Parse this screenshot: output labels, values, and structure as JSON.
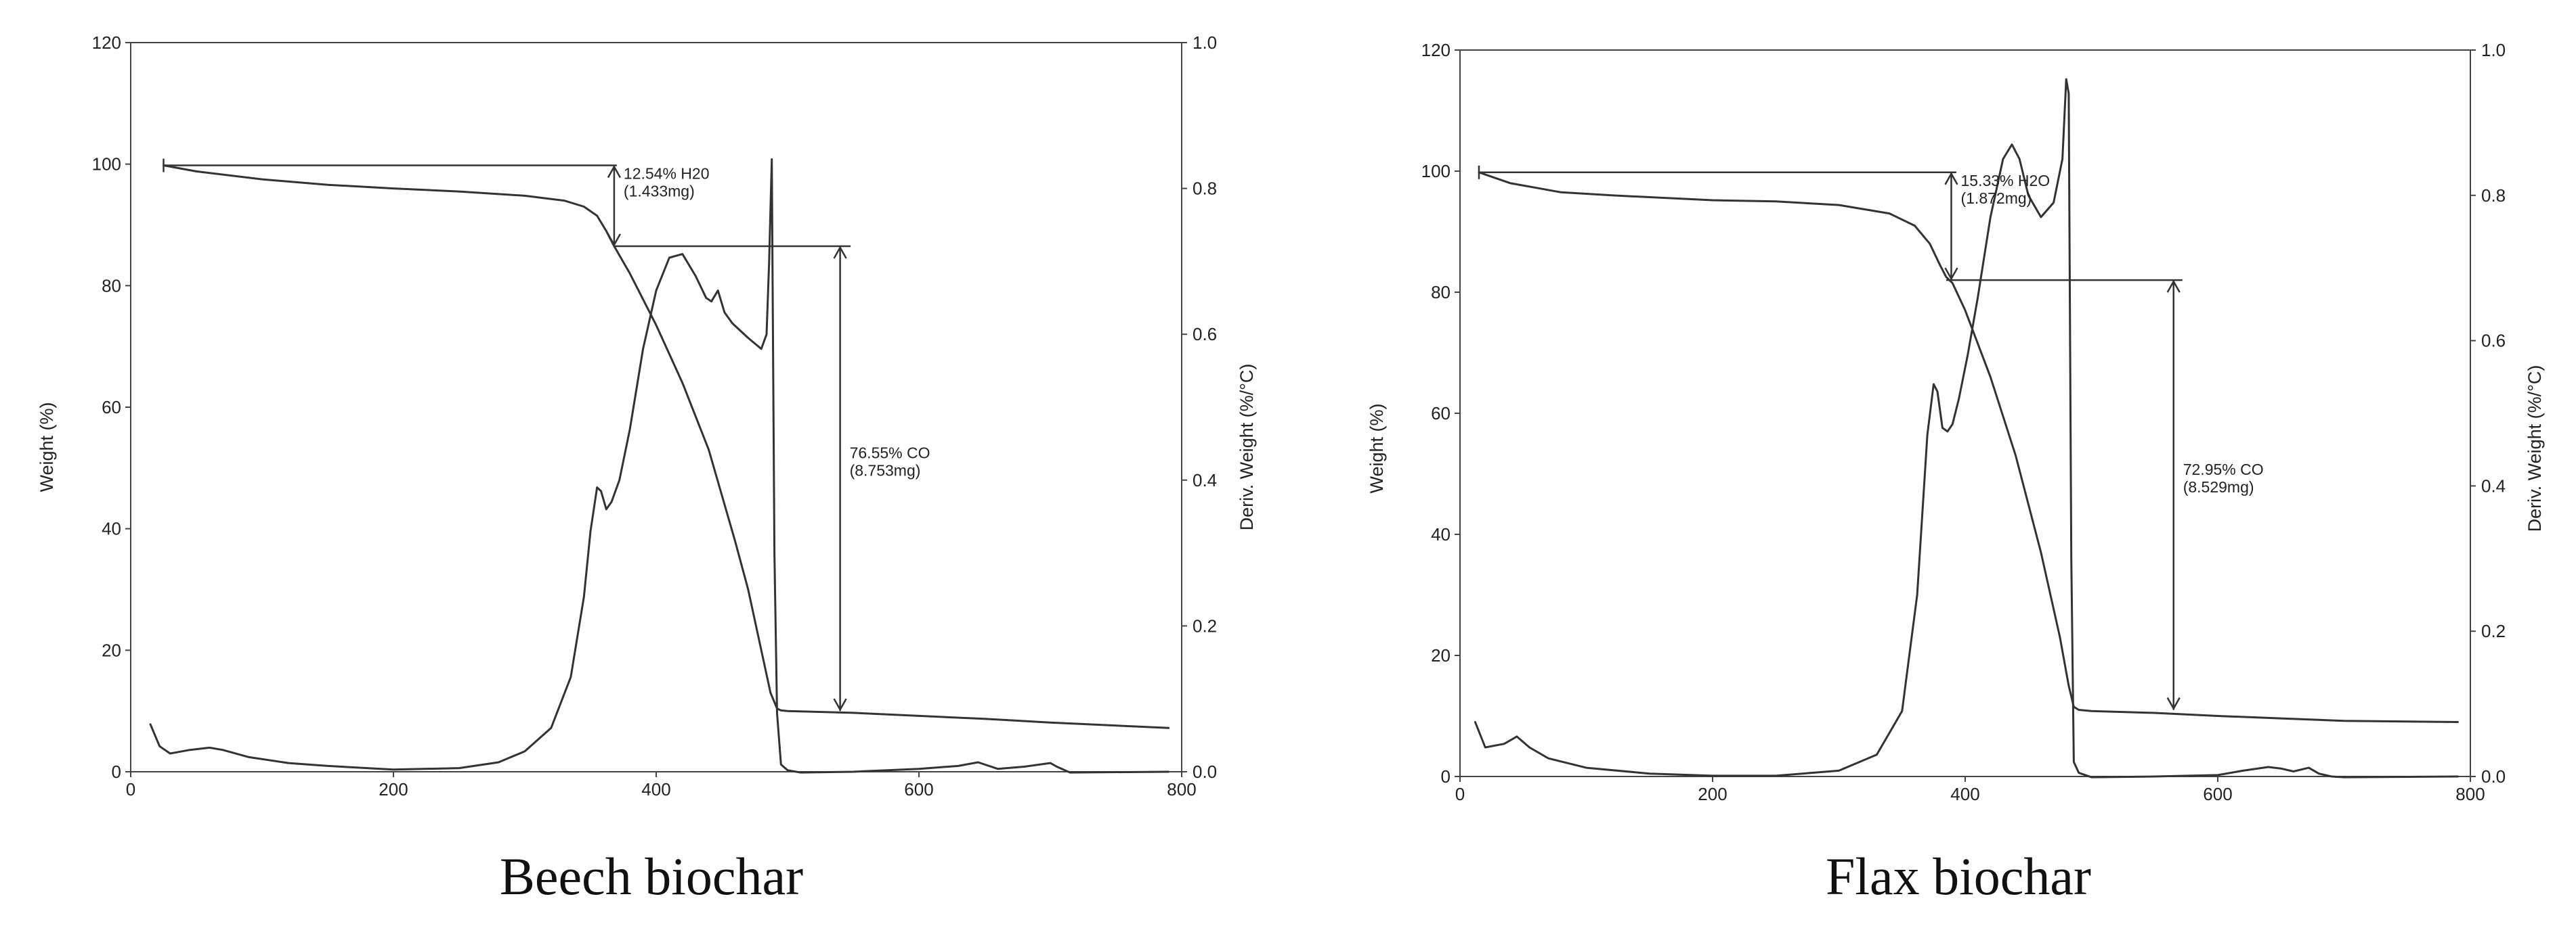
{
  "chart_data": [
    {
      "type": "line",
      "caption": "Beech biochar",
      "xlabel": "",
      "ylabel": "Weight (%)",
      "y2label": "Deriv. Weight (%/°C)",
      "xlim": [
        0,
        800
      ],
      "ylim": [
        0,
        120
      ],
      "y2lim": [
        0,
        1.0
      ],
      "xticks": [
        "0",
        "200",
        "400",
        "600",
        "800"
      ],
      "yticks": [
        "0",
        "20",
        "40",
        "60",
        "80",
        "100",
        "120"
      ],
      "y2ticks": [
        "0.0",
        "0.2",
        "0.4",
        "0.6",
        "0.8",
        "1.0"
      ],
      "grid": false,
      "series": [
        {
          "axis": "left",
          "x": [
            25,
            50,
            100,
            150,
            200,
            250,
            300,
            330,
            345,
            355,
            362,
            368,
            380,
            400,
            420,
            440,
            460,
            470,
            480,
            487,
            492,
            495,
            500,
            550,
            600,
            650,
            700,
            790
          ],
          "y": [
            99.8,
            98.8,
            97.5,
            96.6,
            96.0,
            95.5,
            94.8,
            94.0,
            93.0,
            91.5,
            89.0,
            86.5,
            82.0,
            73.5,
            64.0,
            53.0,
            38.0,
            30.0,
            20.0,
            13.0,
            10.4,
            10.1,
            10.0,
            9.7,
            9.2,
            8.7,
            8.1,
            7.2
          ]
        },
        {
          "axis": "right",
          "x": [
            15,
            22,
            30,
            45,
            60,
            70,
            90,
            120,
            150,
            200,
            250,
            280,
            300,
            320,
            335,
            345,
            350,
            355,
            358,
            362,
            366,
            372,
            380,
            390,
            400,
            410,
            420,
            430,
            438,
            442,
            447,
            452,
            458,
            470,
            480,
            484,
            486,
            488,
            490,
            492,
            495,
            500,
            510,
            550,
            600,
            630,
            645,
            660,
            680,
            700,
            705,
            715,
            790
          ],
          "y": [
            0.065,
            0.035,
            0.025,
            0.03,
            0.033,
            0.03,
            0.02,
            0.012,
            0.008,
            0.003,
            0.005,
            0.013,
            0.028,
            0.06,
            0.13,
            0.24,
            0.33,
            0.39,
            0.385,
            0.36,
            0.37,
            0.4,
            0.47,
            0.58,
            0.66,
            0.705,
            0.71,
            0.68,
            0.65,
            0.645,
            0.66,
            0.63,
            0.615,
            0.595,
            0.58,
            0.6,
            0.7,
            0.84,
            0.3,
            0.08,
            0.01,
            0.002,
            -0.001,
            0.0,
            0.004,
            0.008,
            0.013,
            0.004,
            0.007,
            0.012,
            0.007,
            -0.001,
            0.0
          ]
        }
      ],
      "annotations": [
        {
          "line1": "12.54% H20",
          "line2": "(1.433mg)",
          "x": 368,
          "y_top": 99.8,
          "y_bottom": 86.5,
          "bar_from": 25,
          "bar_to": 370
        },
        {
          "line1": "76.55% CO",
          "line2": "(8.753mg)",
          "x": 540,
          "y_top": 86.5,
          "y_bottom": 10.0,
          "bar_from": 368,
          "bar_to": 548
        }
      ]
    },
    {
      "type": "line",
      "caption": "Flax biochar",
      "xlabel": "",
      "ylabel": "Weight (%)",
      "y2label": "Deriv. Weight (%/°C)",
      "xlim": [
        0,
        800
      ],
      "ylim": [
        0,
        120
      ],
      "y2lim": [
        0,
        1.0
      ],
      "xticks": [
        "0",
        "200",
        "400",
        "600",
        "800"
      ],
      "yticks": [
        "0",
        "20",
        "40",
        "60",
        "80",
        "100",
        "120"
      ],
      "y2ticks": [
        "0.0",
        "0.2",
        "0.4",
        "0.6",
        "0.8",
        "1.0"
      ],
      "grid": false,
      "series": [
        {
          "axis": "left",
          "x": [
            15,
            40,
            80,
            120,
            200,
            250,
            300,
            340,
            360,
            372,
            380,
            385,
            390,
            400,
            420,
            440,
            460,
            475,
            482,
            486,
            490,
            500,
            550,
            600,
            650,
            700,
            790
          ],
          "y": [
            99.8,
            98.0,
            96.5,
            96.0,
            95.2,
            95.0,
            94.4,
            93.0,
            91.0,
            88.0,
            84.5,
            82.5,
            81.5,
            77.0,
            66.0,
            53.0,
            37.0,
            23.0,
            15.0,
            11.5,
            11.0,
            10.8,
            10.5,
            10.0,
            9.6,
            9.2,
            9.0
          ]
        },
        {
          "axis": "right",
          "x": [
            12,
            20,
            35,
            45,
            55,
            70,
            100,
            150,
            200,
            250,
            300,
            330,
            350,
            362,
            370,
            375,
            378,
            382,
            386,
            390,
            395,
            402,
            410,
            420,
            430,
            437,
            443,
            450,
            460,
            470,
            477,
            480,
            482,
            484,
            486,
            490,
            500,
            550,
            600,
            620,
            640,
            650,
            660,
            672,
            680,
            690,
            700,
            790
          ],
          "y": [
            0.075,
            0.04,
            0.045,
            0.055,
            0.04,
            0.025,
            0.012,
            0.004,
            0.001,
            0.001,
            0.008,
            0.03,
            0.09,
            0.25,
            0.47,
            0.54,
            0.53,
            0.48,
            0.475,
            0.485,
            0.52,
            0.58,
            0.66,
            0.77,
            0.85,
            0.87,
            0.85,
            0.8,
            0.77,
            0.79,
            0.85,
            0.96,
            0.94,
            0.3,
            0.02,
            0.005,
            -0.001,
            0.0,
            0.002,
            0.008,
            0.013,
            0.011,
            0.007,
            0.012,
            0.004,
            0.0,
            -0.001,
            0.0
          ]
        }
      ],
      "annotations": [
        {
          "line1": "15.33% H2O",
          "line2": "(1.872mg)",
          "x": 389,
          "y_top": 99.8,
          "y_bottom": 82.0,
          "bar_from": 15,
          "bar_to": 393
        },
        {
          "line1": "72.95% CO",
          "line2": "(8.529mg)",
          "x": 565,
          "y_top": 82.0,
          "y_bottom": 11.0,
          "bar_from": 385,
          "bar_to": 572
        }
      ]
    }
  ]
}
